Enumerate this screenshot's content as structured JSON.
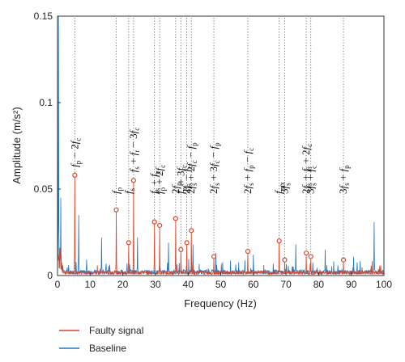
{
  "chart_data": {
    "type": "line",
    "title": "",
    "xlabel": "Frequency (Hz)",
    "ylabel": "Amplitude (m/s²)",
    "xlim": [
      0,
      100
    ],
    "ylim": [
      0,
      0.15
    ],
    "x_ticks": [
      "0",
      "10",
      "20",
      "30",
      "40",
      "50",
      "60",
      "70",
      "80",
      "90",
      "100"
    ],
    "y_ticks": [
      "0",
      "0.05",
      "0.1",
      "0.15"
    ],
    "grid": false,
    "legend_position": "bottom-left",
    "colors": {
      "faulty": "#d9452b",
      "baseline": "#1f77c4"
    },
    "series": [
      {
        "name": "Faulty signal",
        "peaks": [
          {
            "x": 5.3,
            "y": 0.058
          },
          {
            "x": 18.0,
            "y": 0.038
          },
          {
            "x": 21.8,
            "y": 0.019
          },
          {
            "x": 23.3,
            "y": 0.055
          },
          {
            "x": 29.7,
            "y": 0.031
          },
          {
            "x": 31.3,
            "y": 0.029
          },
          {
            "x": 36.2,
            "y": 0.033
          },
          {
            "x": 37.8,
            "y": 0.015
          },
          {
            "x": 39.6,
            "y": 0.019
          },
          {
            "x": 41.0,
            "y": 0.026
          },
          {
            "x": 47.9,
            "y": 0.011
          },
          {
            "x": 58.3,
            "y": 0.014
          },
          {
            "x": 67.9,
            "y": 0.02
          },
          {
            "x": 69.6,
            "y": 0.009
          },
          {
            "x": 76.2,
            "y": 0.013
          },
          {
            "x": 77.6,
            "y": 0.011
          },
          {
            "x": 87.6,
            "y": 0.009
          }
        ]
      },
      {
        "name": "Baseline",
        "peaks": [
          {
            "x": 0.3,
            "y": 0.15
          },
          {
            "x": 1.0,
            "y": 0.045
          },
          {
            "x": 6.5,
            "y": 0.035
          },
          {
            "x": 13.5,
            "y": 0.022
          },
          {
            "x": 24.5,
            "y": 0.022
          },
          {
            "x": 34.0,
            "y": 0.019
          },
          {
            "x": 41.5,
            "y": 0.018
          },
          {
            "x": 48.5,
            "y": 0.013
          },
          {
            "x": 60.0,
            "y": 0.012
          },
          {
            "x": 73.0,
            "y": 0.018
          },
          {
            "x": 82.0,
            "y": 0.015
          },
          {
            "x": 97.0,
            "y": 0.031
          }
        ]
      }
    ],
    "annotations": [
      {
        "x": 5.3,
        "label": "f_p − 2f_c"
      },
      {
        "x": 18.0,
        "label": "f_p"
      },
      {
        "x": 21.8,
        "label": "f_s"
      },
      {
        "x": 23.3,
        "label": "f_s + f_r − 3f_c"
      },
      {
        "x": 29.7,
        "label": "f_s + f_c"
      },
      {
        "x": 31.3,
        "label": "f_p + 2f_c"
      },
      {
        "x": 36.2,
        "label": "2f_p"
      },
      {
        "x": 37.8,
        "label": "f_p + 3f_c"
      },
      {
        "x": 39.6,
        "label": "2f_s − f_c"
      },
      {
        "x": 41.0,
        "label": "2f_s + 2f_c − f_p"
      },
      {
        "x": 47.9,
        "label": "2f_s + 3f_c − f_p"
      },
      {
        "x": 58.3,
        "label": "2f_s + f_p − f_c"
      },
      {
        "x": 67.9,
        "label": "f_mx"
      },
      {
        "x": 69.6,
        "label": "3f_s"
      },
      {
        "x": 76.2,
        "label": "2f_s + f_r + 2f_c"
      },
      {
        "x": 77.6,
        "label": "3f_s + f_c"
      },
      {
        "x": 87.6,
        "label": "3f_s + f_p"
      }
    ]
  }
}
